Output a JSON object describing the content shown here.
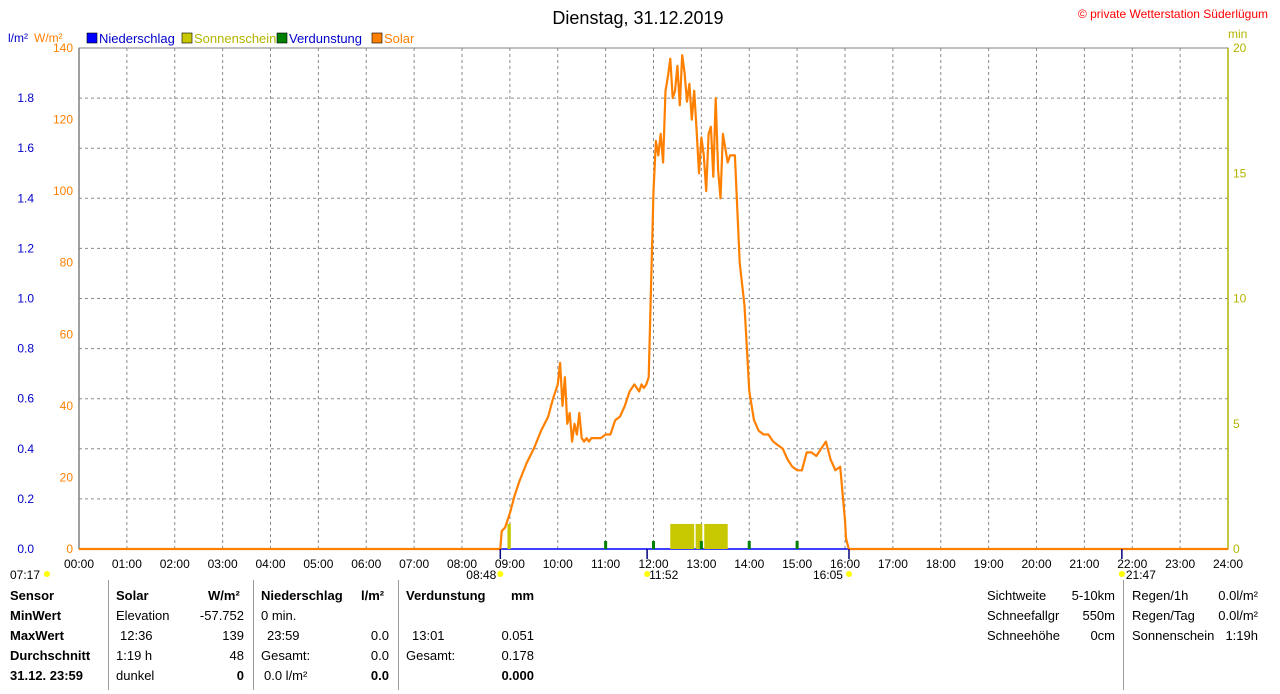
{
  "header": {
    "title": "Dienstag, 31.12.2019",
    "copyright": "© private Wetterstation Süderlügum",
    "left_unit1": "l/m²",
    "left_unit2": "W/m²",
    "right_unit": "min"
  },
  "legend": [
    {
      "label": "Niederschlag",
      "color": "#0000ff"
    },
    {
      "label": "Sonnenschein",
      "color": "#c8c800"
    },
    {
      "label": "Verdunstung",
      "color": "#008000"
    },
    {
      "label": "Solar",
      "color": "#ff8000"
    }
  ],
  "colors": {
    "solar": "#ff8000",
    "sunshine": "#c8c800",
    "evaporation": "#008000",
    "precip_axis": "#0000cc",
    "solar_axis": "#ff8000",
    "sun_axis": "#b4b400",
    "title": "#000000",
    "copyright": "#ff0000"
  },
  "chart_data": {
    "type": "line",
    "x_range_hours": [
      0,
      24
    ],
    "x_ticks": [
      "00:00",
      "01:00",
      "02:00",
      "03:00",
      "04:00",
      "05:00",
      "06:00",
      "07:00",
      "08:00",
      "09:00",
      "10:00",
      "11:00",
      "12:00",
      "13:00",
      "14:00",
      "15:00",
      "16:00",
      "17:00",
      "18:00",
      "19:00",
      "20:00",
      "21:00",
      "22:00",
      "23:00",
      "24:00"
    ],
    "axes": {
      "precip": {
        "label": "l/m²",
        "range": [
          0,
          2.0
        ],
        "ticks": [
          "0.0",
          "0.2",
          "0.4",
          "0.6",
          "0.8",
          "1.0",
          "1.2",
          "1.4",
          "1.6",
          "1.8"
        ]
      },
      "solar": {
        "label": "W/m²",
        "range": [
          0,
          140
        ],
        "ticks": [
          "0",
          "20",
          "40",
          "60",
          "80",
          "100",
          "120",
          "140"
        ]
      },
      "sunshine": {
        "label": "min",
        "range": [
          0,
          20
        ],
        "ticks": [
          "0",
          "5",
          "10",
          "15",
          "20"
        ]
      }
    },
    "grid": true,
    "legend_position": "top-left",
    "solar_series": {
      "name": "Solar",
      "x": [
        8.8,
        8.83,
        8.9,
        9.0,
        9.1,
        9.2,
        9.35,
        9.5,
        9.65,
        9.8,
        9.9,
        10.0,
        10.05,
        10.1,
        10.15,
        10.2,
        10.25,
        10.3,
        10.35,
        10.4,
        10.45,
        10.5,
        10.55,
        10.6,
        10.65,
        10.7,
        10.75,
        10.8,
        10.85,
        10.9,
        11.0,
        11.1,
        11.2,
        11.3,
        11.4,
        11.5,
        11.6,
        11.7,
        11.75,
        11.8,
        11.85,
        11.9,
        12.0,
        12.05,
        12.1,
        12.15,
        12.2,
        12.25,
        12.3,
        12.35,
        12.4,
        12.45,
        12.5,
        12.55,
        12.6,
        12.65,
        12.7,
        12.75,
        12.8,
        12.85,
        12.9,
        12.95,
        13.0,
        13.05,
        13.1,
        13.15,
        13.2,
        13.25,
        13.3,
        13.35,
        13.4,
        13.45,
        13.5,
        13.55,
        13.6,
        13.7,
        13.8,
        13.9,
        14.0,
        14.1,
        14.2,
        14.3,
        14.4,
        14.5,
        14.6,
        14.7,
        14.8,
        14.9,
        15.0,
        15.1,
        15.2,
        15.3,
        15.4,
        15.5,
        15.6,
        15.7,
        15.8,
        15.9,
        16.0,
        16.02,
        16.08
      ],
      "values": [
        0,
        5,
        6,
        10,
        15,
        19,
        24,
        28,
        33,
        37,
        42,
        46,
        52,
        40,
        48,
        35,
        38,
        30,
        35,
        32,
        38,
        31,
        30,
        31,
        30,
        31,
        31,
        31,
        31,
        31,
        32,
        32,
        36,
        37,
        40,
        44,
        46,
        44,
        46,
        45,
        46,
        48,
        100,
        114,
        110,
        116,
        108,
        128,
        132,
        137,
        126,
        128,
        135,
        124,
        138,
        133,
        125,
        130,
        120,
        128,
        117,
        105,
        115,
        110,
        100,
        116,
        118,
        104,
        126,
        106,
        98,
        116,
        112,
        108,
        110,
        110,
        80,
        68,
        44,
        36,
        33,
        32,
        32,
        30,
        29,
        28,
        25,
        23,
        22,
        22,
        27,
        27,
        26,
        28,
        30,
        25,
        22,
        23,
        8,
        3,
        0
      ]
    },
    "sunshine_bars": {
      "name": "Sonnenschein",
      "intervals": [
        [
          8.95,
          9.02
        ],
        [
          12.35,
          12.85
        ],
        [
          12.88,
          13.02
        ],
        [
          13.06,
          13.55
        ]
      ],
      "value_min": 1.0
    },
    "evaporation_marks": [
      11.0,
      12.0,
      13.0,
      14.0,
      15.0
    ],
    "markers": {
      "sunrise": "08:48",
      "noon": "11:52",
      "sunset": "16:05",
      "moonrise": "07:17",
      "moonset": "21:47"
    }
  },
  "stats": {
    "col0": [
      "Sensor",
      "MinWert",
      "MaxWert",
      "Durchschnitt",
      "31.12. 23:59"
    ],
    "solar": {
      "title": "Solar",
      "unit": "W/m²",
      "rows": [
        [
          "Elevation",
          "-57.752"
        ],
        [
          "12:36",
          "139"
        ],
        [
          "1:19 h",
          "48"
        ],
        [
          "dunkel",
          "0"
        ]
      ]
    },
    "niederschlag": {
      "title": "Niederschlag",
      "unit": "l/m²",
      "rows": [
        [
          "0 min.",
          ""
        ],
        [
          "23:59",
          "0.0"
        ],
        [
          "Gesamt:",
          "0.0"
        ],
        [
          "0.0 l/m²",
          "0.0"
        ]
      ]
    },
    "verdunstung": {
      "title": "Verdunstung",
      "unit": "mm",
      "rows": [
        [
          "",
          ""
        ],
        [
          "13:01",
          "0.051"
        ],
        [
          "Gesamt:",
          "0.178"
        ],
        [
          "",
          "0.000"
        ]
      ]
    },
    "extra": [
      [
        "Sichtweite",
        "5-10km"
      ],
      [
        "Schneefallgr",
        "550m"
      ],
      [
        "Schneehöhe",
        "0cm"
      ]
    ],
    "rain": [
      [
        "Regen/1h",
        "0.0l/m²"
      ],
      [
        "Regen/Tag",
        "0.0l/m²"
      ],
      [
        "Sonnenschein",
        "1:19h"
      ]
    ]
  }
}
